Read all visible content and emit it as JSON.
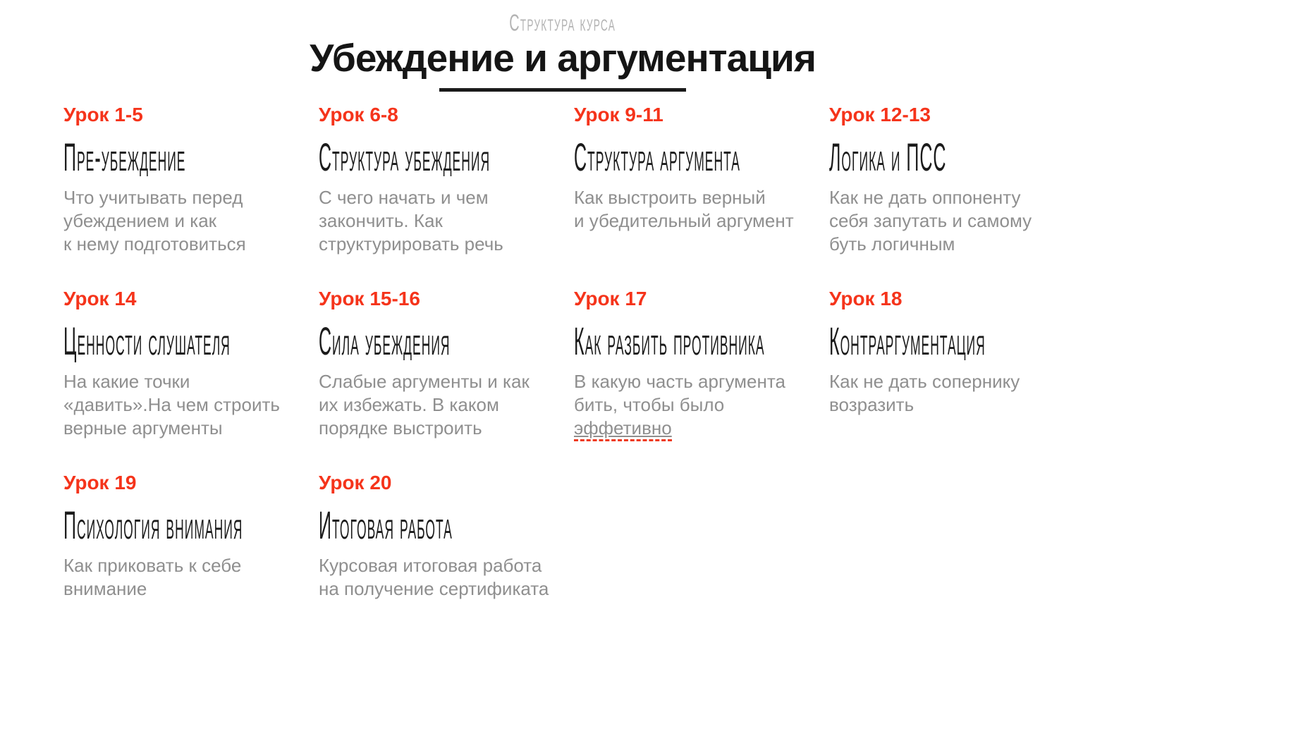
{
  "header": {
    "eyebrow": "Структура курса",
    "title": "Убеждение и аргументация"
  },
  "colors": {
    "accent_red": "#f5341b",
    "title_black": "#151515",
    "description_gray": "#8f8f8f",
    "eyebrow_gray": "#b3b3b3",
    "spellcheck_red": "#ee3a21"
  },
  "lessons": [
    {
      "label": "Урок 1-5",
      "title": "Пре-убеждение",
      "lines": [
        "Что учитывать перед",
        "убеждением и как",
        "к нему подготовиться"
      ]
    },
    {
      "label": "Урок 6-8",
      "title": "Структура убеждения",
      "lines": [
        "С чего начать и чем",
        "закончить. Как",
        "структурировать речь"
      ]
    },
    {
      "label": "Урок 9-11",
      "title": "Структура аргумента",
      "lines": [
        "Как выстроить верный",
        "и убедительный аргумент"
      ]
    },
    {
      "label": "Урок 12-13",
      "title": "Логика и ПСС",
      "lines": [
        "Как не дать оппоненту",
        "себя запутать и самому",
        "буть логичным"
      ]
    },
    {
      "label": "Урок 14",
      "title": "Ценности слушателя",
      "lines": [
        "На какие точки",
        "«давить».На чем строить",
        "верные аргументы"
      ]
    },
    {
      "label": "Урок 15-16",
      "title": "Сила убеждения",
      "lines": [
        "Слабые аргументы и как",
        "их избежать. В каком",
        "порядке выстроить"
      ]
    },
    {
      "label": "Урок 17",
      "title": "Как разбить противника",
      "lines": [
        "В какую часть аргумента",
        "бить, чтобы было",
        "эффетивно"
      ],
      "underline_last_line": true
    },
    {
      "label": "Урок 18",
      "title": "Контраргументация",
      "lines": [
        "Как не дать сопернику",
        "возразить"
      ]
    },
    {
      "label": "Урок 19",
      "title": "Психология внимания",
      "lines": [
        "Как приковать к себе",
        "внимание"
      ]
    },
    {
      "label": "Урок 20",
      "title": "Итоговая работа",
      "lines": [
        "Курсовая итоговая работа",
        "на получение сертификата"
      ]
    }
  ]
}
